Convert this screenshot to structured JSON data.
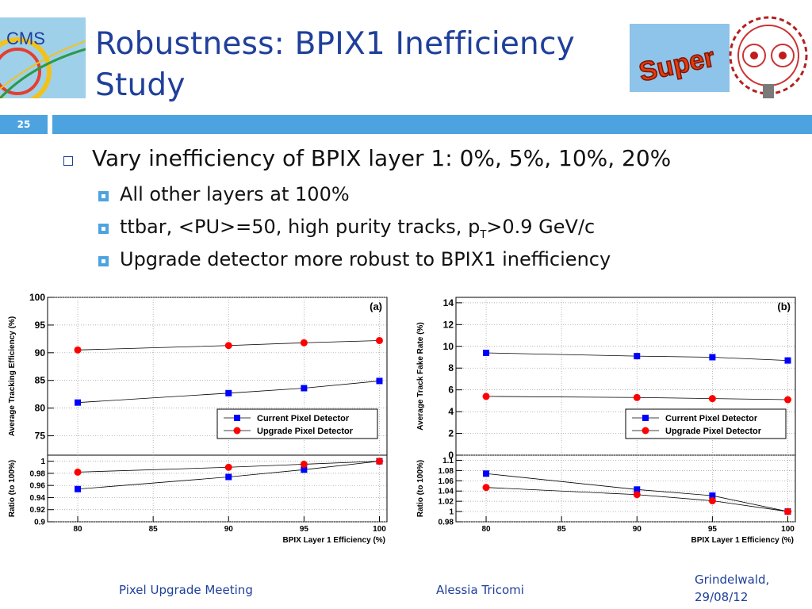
{
  "slide": {
    "title_line1": "Robustness: BPIX1 Inefficiency",
    "title_line2": "Study",
    "number": "25",
    "logo_left_text": "CMS",
    "logo_right_text": "Super"
  },
  "bullets": {
    "main": "Vary inefficiency of BPIX layer 1: 0%, 5%, 10%, 20%",
    "sub1": "All other layers at 100%",
    "sub2_pre": "ttbar, <PU>=50, high purity tracks, p",
    "sub2_sub": "T",
    "sub2_post": ">0.9 GeV/c",
    "sub3": "Upgrade detector more robust to BPIX1 inefficiency"
  },
  "footer": {
    "left": "Pixel Upgrade Meeting",
    "center": "Alessia Tricomi",
    "right_line1": "Grindelwald,",
    "right_line2": "29/08/12"
  },
  "colors": {
    "accent": "#4da3df",
    "title": "#1f3f9a",
    "current": "#0000ff",
    "upgrade": "#ff0000"
  },
  "chart_data": [
    {
      "type": "scatter",
      "panel_label": "(a)",
      "ylabel": "Average Tracking Efficiency (%)",
      "ratio_ylabel": "Ratio (to 100%)",
      "xlabel": "BPIX Layer 1 Efficiency (%)",
      "x": [
        80,
        90,
        95,
        100
      ],
      "xlim": [
        78,
        100.5
      ],
      "xticks": [
        80,
        85,
        90,
        95,
        100
      ],
      "ylim": [
        71.5,
        100
      ],
      "yticks": [
        75,
        80,
        85,
        90,
        95,
        100
      ],
      "ratio_ylim": [
        0.9,
        1.01
      ],
      "ratio_yticks": [
        0.9,
        0.92,
        0.94,
        0.96,
        0.98,
        1
      ],
      "legend_position": "bottom-right",
      "series": [
        {
          "name": "Current Pixel Detector",
          "marker": "square",
          "values": [
            81.0,
            82.7,
            83.6,
            84.9
          ],
          "ratio": [
            0.954,
            0.974,
            0.986,
            1.0
          ]
        },
        {
          "name": "Upgrade Pixel Detector",
          "marker": "circle",
          "values": [
            90.5,
            91.3,
            91.8,
            92.2
          ],
          "ratio": [
            0.982,
            0.99,
            0.995,
            1.0
          ]
        }
      ]
    },
    {
      "type": "scatter",
      "panel_label": "(b)",
      "ylabel": "Average Track Fake Rate (%)",
      "ratio_ylabel": "Ratio (to 100%)",
      "xlabel": "BPIX Layer 1 Efficiency (%)",
      "x": [
        80,
        90,
        95,
        100
      ],
      "xlim": [
        78,
        100.5
      ],
      "xticks": [
        80,
        85,
        90,
        95,
        100
      ],
      "ylim": [
        0,
        14.5
      ],
      "yticks": [
        0,
        2,
        4,
        6,
        8,
        10,
        12,
        14
      ],
      "ratio_ylim": [
        0.98,
        1.11
      ],
      "ratio_yticks": [
        0.98,
        1,
        1.02,
        1.04,
        1.06,
        1.08,
        1.1
      ],
      "legend_position": "bottom-right",
      "series": [
        {
          "name": "Current Pixel Detector",
          "marker": "square",
          "values": [
            9.4,
            9.1,
            9.0,
            8.7
          ],
          "ratio": [
            1.074,
            1.043,
            1.031,
            1.0
          ]
        },
        {
          "name": "Upgrade Pixel Detector",
          "marker": "circle",
          "values": [
            5.4,
            5.3,
            5.2,
            5.1
          ],
          "ratio": [
            1.047,
            1.033,
            1.021,
            1.0
          ]
        }
      ]
    }
  ]
}
